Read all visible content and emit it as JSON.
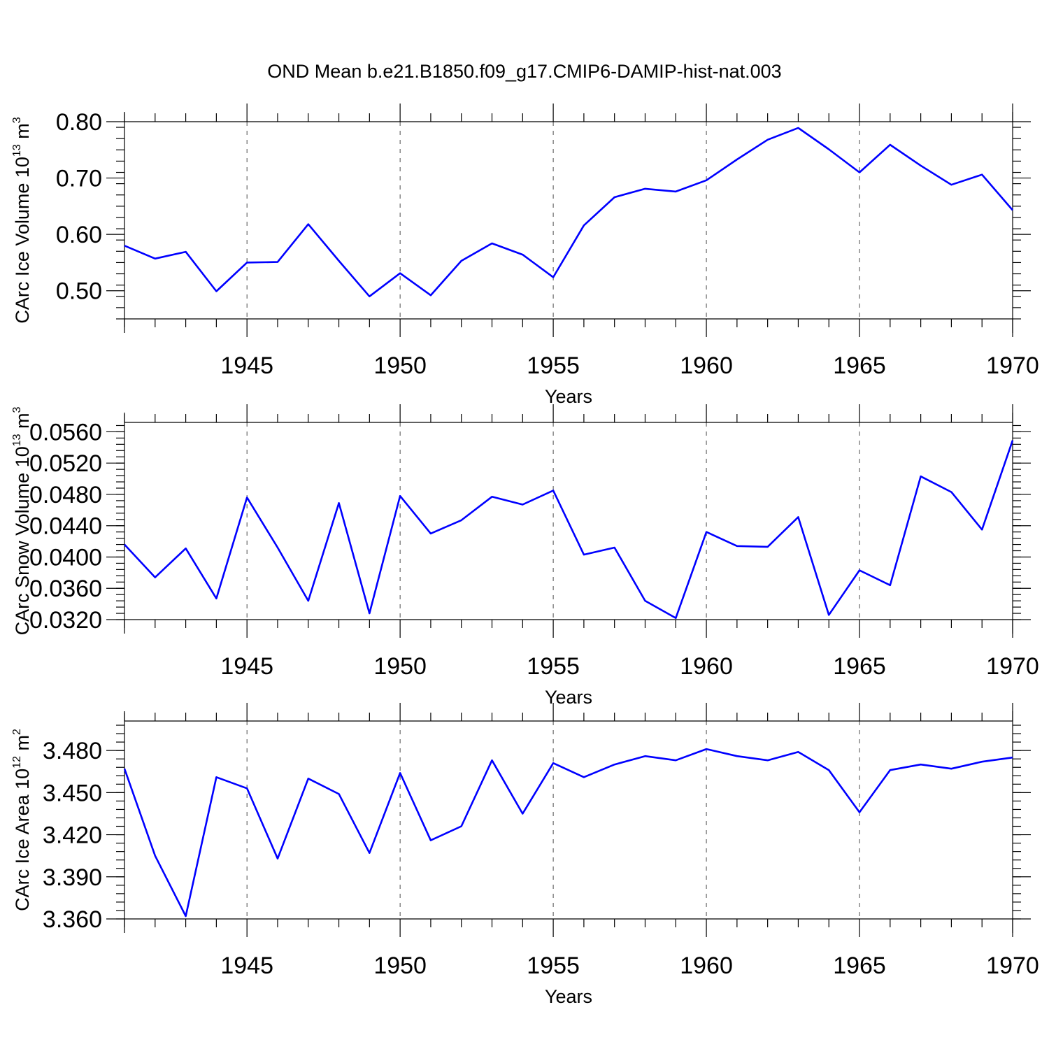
{
  "title": "OND Mean b.e21.B1850.f09_g17.CMIP6-DAMIP-hist-nat.003",
  "colors": {
    "series": "#0000ff",
    "axis": "#000000"
  },
  "chart_data": [
    {
      "type": "line",
      "ylabel_main": "CArc Ice Volume 10",
      "ylabel_exp": "13",
      "ylabel_unit": " m",
      "ylabel_unit_exp": "3",
      "xlabel": "Years",
      "xlim": [
        1941,
        1970
      ],
      "ylim": [
        0.45,
        0.8
      ],
      "yticks": [
        0.5,
        0.6,
        0.7,
        0.8
      ],
      "ytick_labels": [
        "0.50",
        "0.60",
        "0.70",
        "0.80"
      ],
      "yminor_step": 0.02,
      "xticks": [
        1945,
        1950,
        1955,
        1960,
        1965,
        1970
      ],
      "xtick_labels": [
        "1945",
        "1950",
        "1955",
        "1960",
        "1965",
        "1970"
      ],
      "x": [
        1941,
        1942,
        1943,
        1944,
        1945,
        1946,
        1947,
        1948,
        1949,
        1950,
        1951,
        1952,
        1953,
        1954,
        1955,
        1956,
        1957,
        1958,
        1959,
        1960,
        1961,
        1962,
        1963,
        1964,
        1965,
        1966,
        1967,
        1968,
        1969,
        1970
      ],
      "values": [
        0.58,
        0.557,
        0.569,
        0.499,
        0.55,
        0.551,
        0.618,
        0.553,
        0.49,
        0.531,
        0.492,
        0.553,
        0.584,
        0.564,
        0.524,
        0.616,
        0.666,
        0.681,
        0.676,
        0.696,
        0.733,
        0.768,
        0.789,
        0.751,
        0.71,
        0.759,
        0.722,
        0.688,
        0.706,
        0.643
      ]
    },
    {
      "type": "line",
      "ylabel_main": "CArc Snow Volume 10",
      "ylabel_exp": "13",
      "ylabel_unit": " m",
      "ylabel_unit_exp": "3",
      "xlabel": "Years",
      "xlim": [
        1941,
        1970
      ],
      "ylim": [
        0.032,
        0.0572
      ],
      "yticks": [
        0.032,
        0.036,
        0.04,
        0.044,
        0.048,
        0.052,
        0.056
      ],
      "ytick_labels": [
        "0.0320",
        "0.0360",
        "0.0400",
        "0.0440",
        "0.0480",
        "0.0520",
        "0.0560"
      ],
      "yminor_step": 0.0008,
      "xticks": [
        1945,
        1950,
        1955,
        1960,
        1965,
        1970
      ],
      "xtick_labels": [
        "1945",
        "1950",
        "1955",
        "1960",
        "1965",
        "1970"
      ],
      "x": [
        1941,
        1942,
        1943,
        1944,
        1945,
        1946,
        1947,
        1948,
        1949,
        1950,
        1951,
        1952,
        1953,
        1954,
        1955,
        1956,
        1957,
        1958,
        1959,
        1960,
        1961,
        1962,
        1963,
        1964,
        1965,
        1966,
        1967,
        1968,
        1969,
        1970
      ],
      "values": [
        0.0416,
        0.0374,
        0.0411,
        0.0347,
        0.0476,
        0.0412,
        0.0344,
        0.0469,
        0.0328,
        0.0478,
        0.043,
        0.0447,
        0.0477,
        0.0467,
        0.0485,
        0.0403,
        0.0412,
        0.0344,
        0.0322,
        0.0432,
        0.0414,
        0.0413,
        0.0451,
        0.0326,
        0.0383,
        0.0364,
        0.0503,
        0.0483,
        0.0435,
        0.0549
      ]
    },
    {
      "type": "line",
      "ylabel_main": "CArc Ice Area 10",
      "ylabel_exp": "12",
      "ylabel_unit": " m",
      "ylabel_unit_exp": "2",
      "xlabel": "Years",
      "xlim": [
        1941,
        1970
      ],
      "ylim": [
        3.36,
        3.501
      ],
      "yticks": [
        3.36,
        3.39,
        3.42,
        3.45,
        3.48
      ],
      "ytick_labels": [
        "3.360",
        "3.390",
        "3.420",
        "3.450",
        "3.480"
      ],
      "yminor_step": 0.006,
      "xticks": [
        1945,
        1950,
        1955,
        1960,
        1965,
        1970
      ],
      "xtick_labels": [
        "1945",
        "1950",
        "1955",
        "1960",
        "1965",
        "1970"
      ],
      "x": [
        1941,
        1942,
        1943,
        1944,
        1945,
        1946,
        1947,
        1948,
        1949,
        1950,
        1951,
        1952,
        1953,
        1954,
        1955,
        1956,
        1957,
        1958,
        1959,
        1960,
        1961,
        1962,
        1963,
        1964,
        1965,
        1966,
        1967,
        1968,
        1969,
        1970
      ],
      "values": [
        3.467,
        3.405,
        3.362,
        3.461,
        3.453,
        3.403,
        3.46,
        3.449,
        3.407,
        3.464,
        3.416,
        3.426,
        3.473,
        3.435,
        3.471,
        3.461,
        3.47,
        3.476,
        3.473,
        3.481,
        3.476,
        3.473,
        3.479,
        3.466,
        3.436,
        3.466,
        3.47,
        3.467,
        3.472,
        3.475
      ]
    }
  ]
}
